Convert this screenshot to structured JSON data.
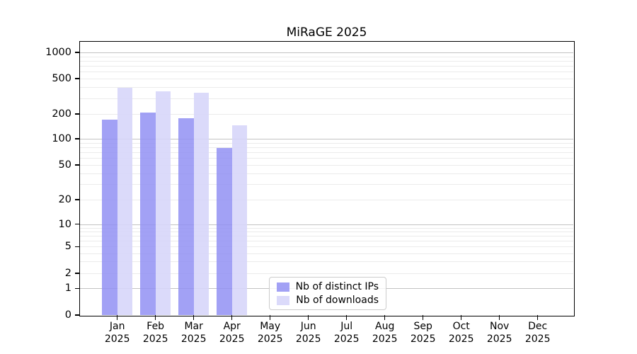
{
  "chart_data": {
    "type": "bar",
    "title": "MiRaGE 2025",
    "categories": [
      "Jan 2025",
      "Feb 2025",
      "Mar 2025",
      "Apr 2025",
      "May 2025",
      "Jun 2025",
      "Jul 2025",
      "Aug 2025",
      "Sep 2025",
      "Oct 2025",
      "Nov 2025",
      "Dec 2025"
    ],
    "series": [
      {
        "name": "Nb of distinct IPs",
        "color": "#a5a3f4",
        "color_rgba": "rgba(146,144,243,0.85)",
        "values": [
          172,
          207,
          177,
          78,
          null,
          null,
          null,
          null,
          null,
          null,
          null,
          null
        ]
      },
      {
        "name": "Nb of downloads",
        "color": "#dbdaf9",
        "color_rgba": "rgba(215,214,250,0.9)",
        "values": [
          395,
          362,
          346,
          146,
          null,
          null,
          null,
          null,
          null,
          null,
          null,
          null
        ]
      }
    ],
    "xlabel": "",
    "ylabel": "",
    "yscale": "symlog",
    "yticks": [
      1000,
      500,
      200,
      100,
      50,
      20,
      10,
      5,
      2,
      1,
      0
    ],
    "ylim": [
      0,
      1300
    ],
    "grid": "horizontal major (decades) and minor gridlines",
    "legend_position": "bottom center inside plot axes"
  }
}
